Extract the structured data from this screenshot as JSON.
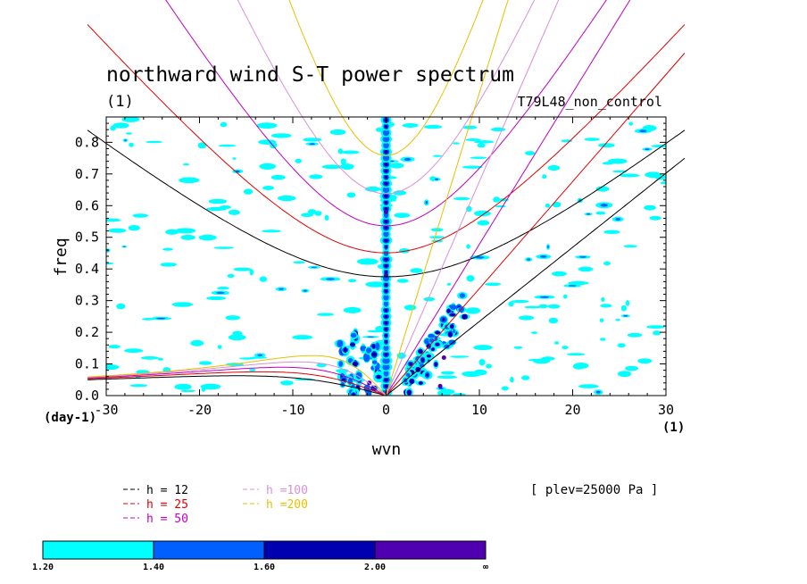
{
  "chart_data": {
    "type": "contour",
    "title": "northward wind S-T power spectrum",
    "subtitle": "(1)",
    "dataset": "T79L48_non_control",
    "xlabel": "wvn",
    "ylabel": "freq",
    "x_unit": "(1)",
    "y_unit": "(day-1)",
    "xlim": [
      -30,
      30
    ],
    "ylim": [
      0,
      0.88
    ],
    "x_ticks": [
      -30,
      -20,
      -10,
      0,
      10,
      20,
      30
    ],
    "y_ticks": [
      0.0,
      0.1,
      0.2,
      0.3,
      0.4,
      0.5,
      0.6,
      0.7,
      0.8
    ],
    "annotation": "[ plev=25000 Pa ]",
    "dispersion_curves": [
      {
        "label": "h = 12",
        "h": 12,
        "color": "#000000"
      },
      {
        "label": "h = 25",
        "h": 25,
        "color": "#e00000"
      },
      {
        "label": "h = 50",
        "h": 50,
        "color": "#c000c0"
      },
      {
        "label": "h =100",
        "h": 100,
        "color": "#d890d8"
      },
      {
        "label": "h =200",
        "h": 200,
        "color": "#e8c000"
      }
    ],
    "colorbar": {
      "levels": [
        "1.20",
        "1.40",
        "1.60",
        "2.00",
        "∞"
      ],
      "colors": [
        "#00ffff",
        "#0060ff",
        "#0000b0",
        "#5000b0"
      ]
    }
  }
}
